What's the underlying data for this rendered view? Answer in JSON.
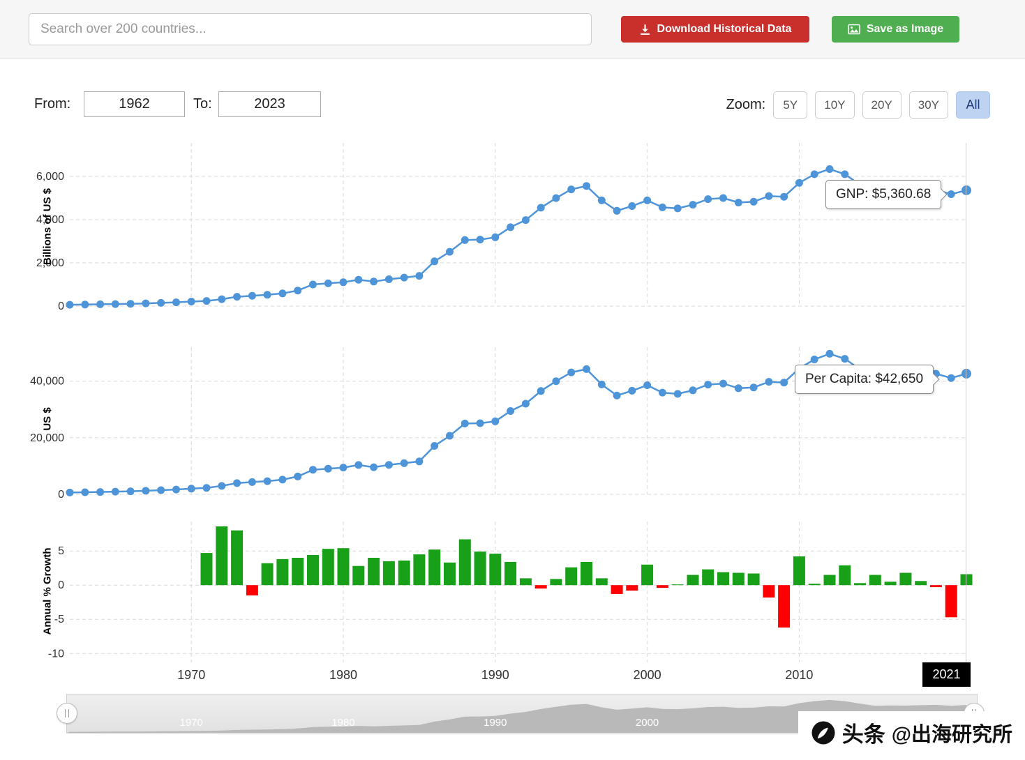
{
  "colors": {
    "line_blue": "#4e94d8",
    "bar_green": "#18a018",
    "bar_red": "#fe0000",
    "download_red": "#c9302c",
    "save_green": "#4fae4f",
    "zoom_selected_bg": "#bed3f1",
    "zoom_selected_text": "#1f3d7a",
    "crosshair_label_bg": "#000000",
    "navigator_area": "#b9b9b9"
  },
  "header": {
    "search_placeholder": "Search over 200 countries...",
    "download_button_label": "Download Historical Data",
    "save_button_label": "Save as Image"
  },
  "controls": {
    "from_label": "From:",
    "from_value": "1962",
    "to_label": "To:",
    "to_value": "2023",
    "zoom_label": "Zoom:",
    "zoom_options": [
      "5Y",
      "10Y",
      "20Y",
      "30Y",
      "All"
    ],
    "zoom_selected": "All"
  },
  "x_axis_labels": [
    "1970",
    "1980",
    "1990",
    "2000",
    "2010"
  ],
  "crosshair_year": "2021",
  "tooltips": {
    "gnp": "GNP: $5,360.68",
    "per_capita": "Per Capita: $42,650"
  },
  "navigator": {
    "labels": [
      "1970",
      "1980",
      "1990",
      "2000"
    ]
  },
  "watermark": {
    "brand": "头条",
    "handle": "@出海研究所"
  },
  "chart_data": [
    {
      "type": "line",
      "name": "gnp",
      "ylabel": "Billions of US $",
      "yticks": [
        0,
        2000,
        4000,
        6000
      ],
      "ylim": [
        0,
        7550
      ],
      "hover_label": "GNP: $5,360.68",
      "hover_year": 2021,
      "x": [
        1962,
        1963,
        1964,
        1965,
        1966,
        1967,
        1968,
        1969,
        1970,
        1971,
        1972,
        1973,
        1974,
        1975,
        1976,
        1977,
        1978,
        1979,
        1980,
        1981,
        1982,
        1983,
        1984,
        1985,
        1986,
        1987,
        1988,
        1989,
        1990,
        1991,
        1992,
        1993,
        1994,
        1995,
        1996,
        1997,
        1998,
        1999,
        2000,
        2001,
        2002,
        2003,
        2004,
        2005,
        2006,
        2007,
        2008,
        2009,
        2010,
        2011,
        2012,
        2013,
        2014,
        2015,
        2016,
        2017,
        2018,
        2019,
        2020,
        2021
      ],
      "values": [
        61,
        71,
        83,
        93,
        107,
        126,
        150,
        175,
        209,
        240,
        318,
        432,
        479,
        522,
        586,
        718,
        1000,
        1052,
        1105,
        1219,
        1135,
        1241,
        1319,
        1399,
        2071,
        2514,
        3056,
        3078,
        3186,
        3648,
        3981,
        4554,
        4999,
        5400,
        5560,
        4890,
        4410,
        4630,
        4890,
        4570,
        4520,
        4690,
        4950,
        5000,
        4790,
        4830,
        5090,
        5060,
        5700,
        6100,
        6340,
        6100,
        5620,
        5180,
        5270,
        5220,
        5310,
        5380,
        5180,
        5360.68
      ]
    },
    {
      "type": "line",
      "name": "per-capita",
      "ylabel": "US $",
      "yticks": [
        0,
        20000,
        40000
      ],
      "ylim": [
        0,
        52000
      ],
      "hover_label": "Per Capita: $42,650",
      "hover_year": 2021,
      "x": [
        1962,
        1963,
        1964,
        1965,
        1966,
        1967,
        1968,
        1969,
        1970,
        1971,
        1972,
        1973,
        1974,
        1975,
        1976,
        1977,
        1978,
        1979,
        1980,
        1981,
        1982,
        1983,
        1984,
        1985,
        1986,
        1987,
        1988,
        1989,
        1990,
        1991,
        1992,
        1993,
        1994,
        1995,
        1996,
        1997,
        1998,
        1999,
        2000,
        2001,
        2002,
        2003,
        2004,
        2005,
        2006,
        2007,
        2008,
        2009,
        2010,
        2011,
        2012,
        2013,
        2014,
        2015,
        2016,
        2017,
        2018,
        2019,
        2020,
        2021
      ],
      "values": [
        640,
        740,
        850,
        950,
        1080,
        1260,
        1480,
        1710,
        2020,
        2280,
        2970,
        3970,
        4330,
        4670,
        5190,
        6300,
        8700,
        9080,
        9460,
        10370,
        9590,
        10420,
        11010,
        11620,
        17120,
        20690,
        25050,
        25130,
        25800,
        29440,
        32030,
        36520,
        39990,
        43100,
        44270,
        38840,
        34940,
        36630,
        38570,
        35960,
        35510,
        36780,
        38790,
        39150,
        37510,
        37790,
        39770,
        39500,
        44500,
        47690,
        49690,
        47920,
        44220,
        40720,
        41500,
        41170,
        41980,
        42630,
        41110,
        42650
      ]
    },
    {
      "type": "bar",
      "name": "growth",
      "ylabel": "Annual % Growth",
      "yticks": [
        5,
        0,
        -5,
        -10
      ],
      "ylim": [
        -11.3,
        9.3
      ],
      "x": [
        1971,
        1972,
        1973,
        1974,
        1975,
        1976,
        1977,
        1978,
        1979,
        1980,
        1981,
        1982,
        1983,
        1984,
        1985,
        1986,
        1987,
        1988,
        1989,
        1990,
        1991,
        1992,
        1993,
        1994,
        1995,
        1996,
        1997,
        1998,
        1999,
        2000,
        2001,
        2002,
        2003,
        2004,
        2005,
        2006,
        2007,
        2008,
        2009,
        2010,
        2011,
        2012,
        2013,
        2014,
        2015,
        2016,
        2017,
        2018,
        2019,
        2020,
        2021
      ],
      "values": [
        4.7,
        8.6,
        8.0,
        -1.5,
        3.2,
        3.8,
        4.0,
        4.4,
        5.3,
        5.4,
        2.8,
        4.0,
        3.5,
        3.6,
        4.5,
        5.2,
        3.3,
        6.7,
        4.9,
        4.6,
        3.4,
        1.0,
        -0.5,
        0.9,
        2.6,
        3.4,
        1.0,
        -1.3,
        -0.8,
        3.0,
        -0.4,
        0.1,
        1.5,
        2.3,
        1.9,
        1.8,
        1.7,
        -1.8,
        -6.2,
        4.2,
        0.2,
        1.5,
        2.9,
        0.3,
        1.5,
        0.5,
        1.8,
        0.6,
        -0.3,
        -4.7,
        1.6
      ]
    }
  ]
}
